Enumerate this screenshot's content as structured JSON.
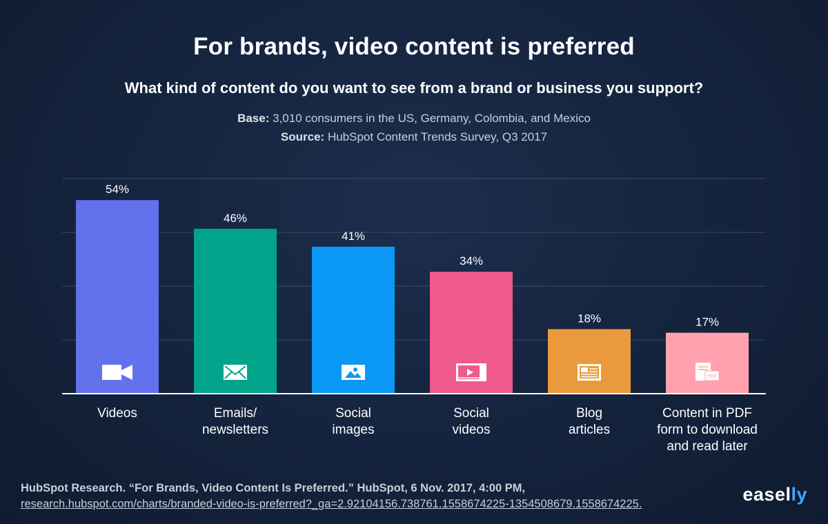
{
  "header": {
    "title": "For brands, video content is preferred",
    "subtitle": "What kind of content do you want to see from a brand or business you support?",
    "base_label": "Base:",
    "base_text": "3,010 consumers in the US, Germany, Colombia, and Mexico",
    "source_label": "Source:",
    "source_text": "HubSpot Content Trends Survey, Q3 2017"
  },
  "chart_data": {
    "type": "bar",
    "categories": [
      "Videos",
      "Emails/\nnewsletters",
      "Social\nimages",
      "Social\nvideos",
      "Blog\narticles",
      "Content in PDF\nform to download\nand read later"
    ],
    "values": [
      54,
      46,
      41,
      34,
      18,
      17
    ],
    "value_labels": [
      "54%",
      "46%",
      "41%",
      "34%",
      "18%",
      "17%"
    ],
    "colors": [
      "#6271ec",
      "#00a48a",
      "#0b97f6",
      "#ef5a8c",
      "#ea9a3c",
      "#ffa2ad"
    ],
    "icons": [
      "video-camera-icon",
      "envelope-icon",
      "image-icon",
      "video-player-icon",
      "article-icon",
      "pdf-document-icon"
    ],
    "ylim": [
      0,
      60
    ],
    "grid": true,
    "legend": "none"
  },
  "footer": {
    "citation": "HubSpot Research. “For Brands, Video Content Is Preferred.” HubSpot, 6 Nov. 2017, 4:00 PM,",
    "url": "research.hubspot.com/charts/branded-video-is-preferred?_ga=2.92104156.738761.1558674225-1354508679.1558674225."
  },
  "brand": {
    "logo_main": "easel",
    "logo_accent": "ly",
    "accent_color": "#3aa8ff"
  }
}
